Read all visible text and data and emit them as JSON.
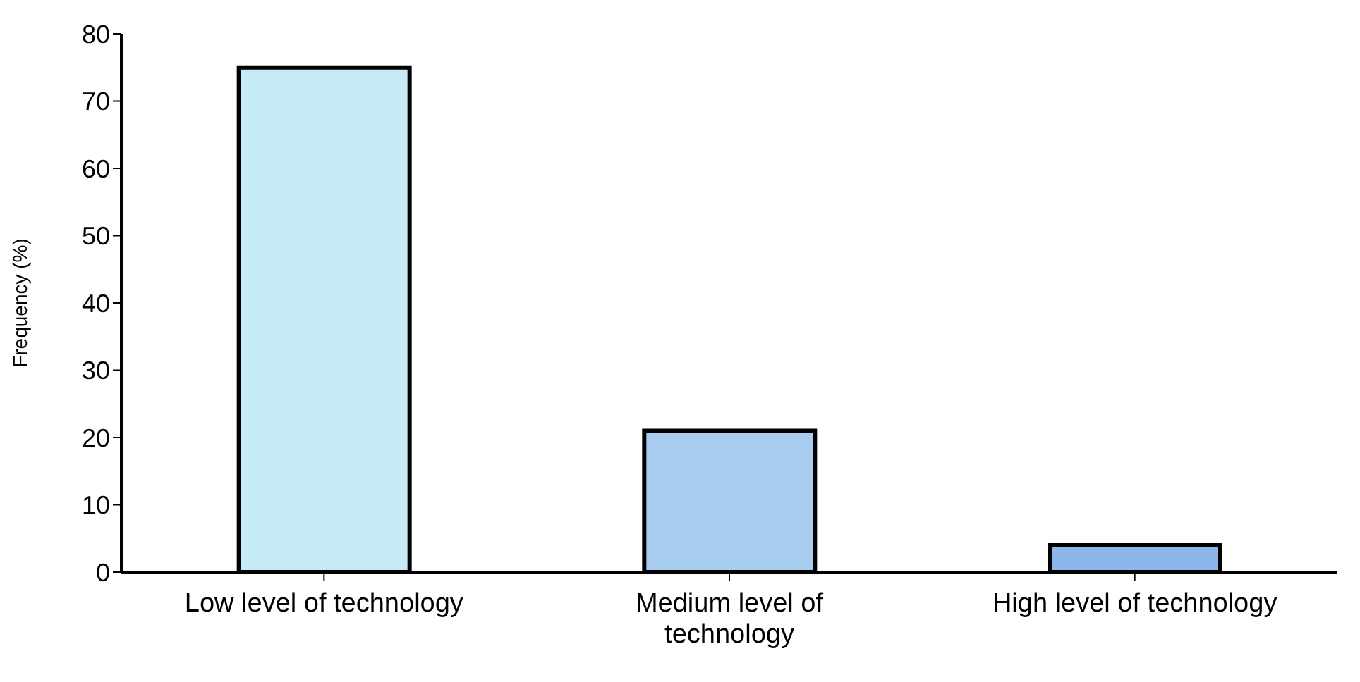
{
  "chart_data": {
    "type": "bar",
    "ylabel": "Frequency (%)",
    "categories": [
      "Low level of technology",
      "Medium level of technology",
      "High level of technology"
    ],
    "values": [
      75,
      21,
      4
    ],
    "colors": [
      "#c6eaf6",
      "#a9cdf0",
      "#8db6ea"
    ],
    "ylim": [
      0,
      80
    ],
    "yticks": [
      0,
      10,
      20,
      30,
      40,
      50,
      60,
      70,
      80
    ],
    "grid": false,
    "legend": false
  }
}
